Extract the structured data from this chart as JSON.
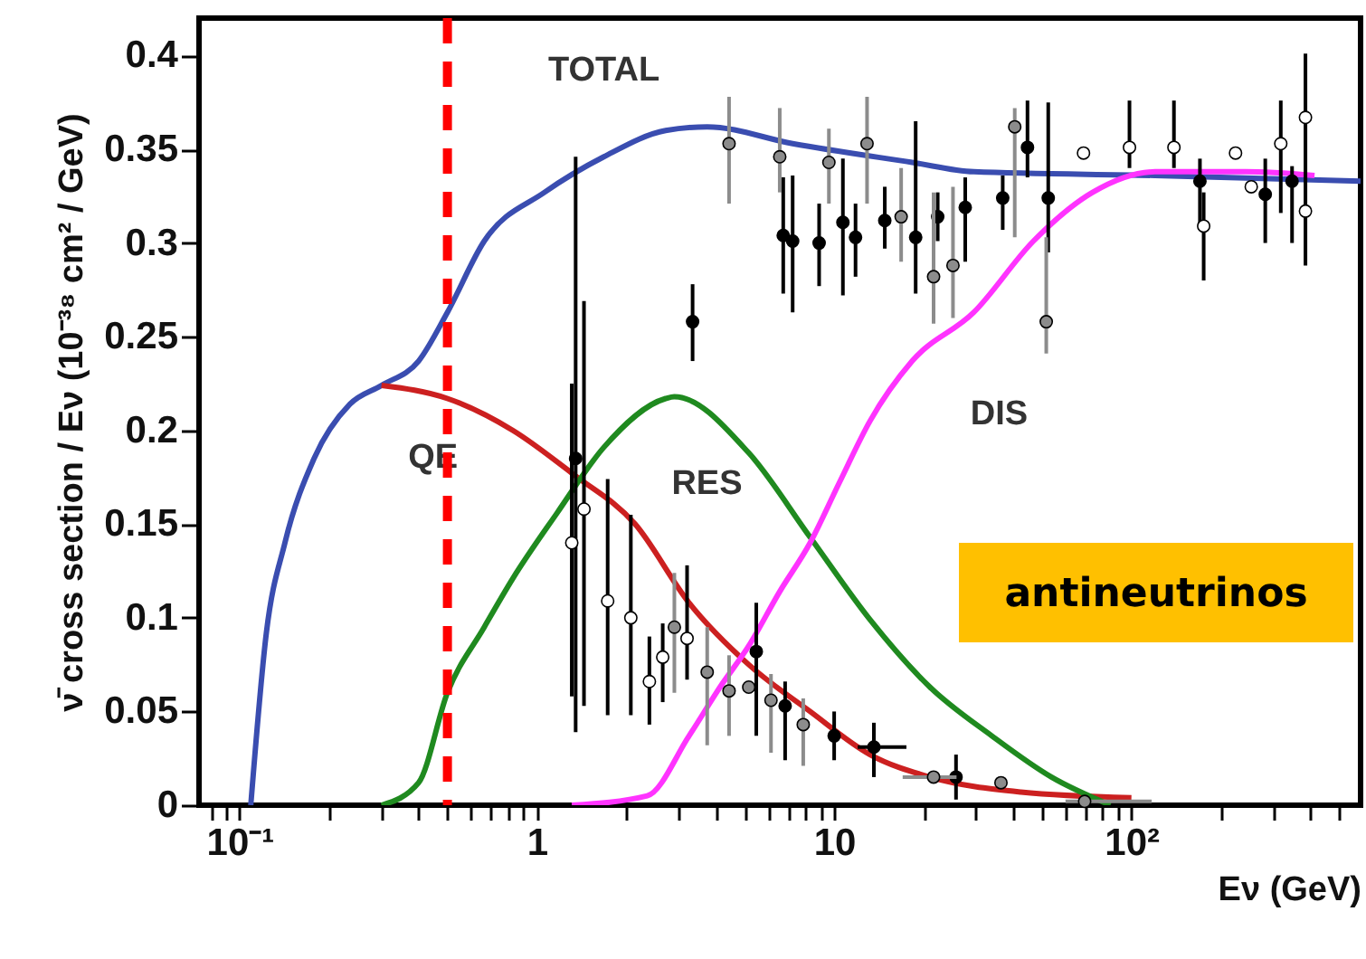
{
  "chart_data": {
    "type": "line",
    "xlabel": "Eν (GeV)",
    "ylabel": "ν̄ cross section / Eν (10⁻³⁸ cm² / GeV)",
    "log": "x",
    "grid": false,
    "line_style": "solid",
    "xlim": [
      0.073,
      590
    ],
    "ylim": [
      0,
      0.42
    ],
    "xticks": [
      {
        "value": 0.08,
        "label": null
      },
      {
        "value": 0.09,
        "label": null
      },
      {
        "value": 0.1,
        "label": "10⁻¹"
      },
      {
        "value": 0.2,
        "label": null
      },
      {
        "value": 0.3,
        "label": null
      },
      {
        "value": 0.4,
        "label": null
      },
      {
        "value": 0.5,
        "label": null
      },
      {
        "value": 0.6,
        "label": null
      },
      {
        "value": 0.7,
        "label": null
      },
      {
        "value": 0.8,
        "label": null
      },
      {
        "value": 0.9,
        "label": null
      },
      1,
      {
        "value": 2,
        "label": null
      },
      {
        "value": 3,
        "label": null
      },
      {
        "value": 4,
        "label": null
      },
      {
        "value": 5,
        "label": null
      },
      {
        "value": 6,
        "label": null
      },
      {
        "value": 7,
        "label": null
      },
      {
        "value": 8,
        "label": null
      },
      {
        "value": 9,
        "label": null
      },
      10,
      {
        "value": 20,
        "label": null
      },
      {
        "value": 30,
        "label": null
      },
      {
        "value": 40,
        "label": null
      },
      {
        "value": 50,
        "label": null
      },
      {
        "value": 60,
        "label": null
      },
      {
        "value": 70,
        "label": null
      },
      {
        "value": 80,
        "label": null
      },
      {
        "value": 90,
        "label": null
      },
      {
        "value": 100,
        "label": "10²"
      },
      {
        "value": 200,
        "label": null
      },
      {
        "value": 300,
        "label": null
      },
      {
        "value": 400,
        "label": null
      },
      {
        "value": 500,
        "label": null
      }
    ],
    "yticks": [
      0,
      0.05,
      0.1,
      0.15,
      0.2,
      0.25,
      0.3,
      0.35,
      0.4
    ],
    "ref_lines": [
      {
        "axis": "x",
        "value": 0.5,
        "color": "#ff0000",
        "line_style": "dashed"
      }
    ],
    "annotations": [
      "antineutrinos"
    ],
    "series": [
      {
        "name": "TOTAL",
        "marker": "none",
        "color": "#3a4db0",
        "x": [
          0.109,
          0.123,
          0.142,
          0.178,
          0.235,
          0.3,
          0.4,
          0.5,
          0.665,
          1.06,
          1.68,
          2.71,
          3.74,
          7.25,
          18.3,
          29.5,
          120,
          590
        ],
        "values": [
          0,
          0.092,
          0.14,
          0.185,
          0.214,
          0.224,
          0.237,
          0.263,
          0.301,
          0.327,
          0.346,
          0.36,
          0.362,
          0.353,
          0.343,
          0.338,
          0.336,
          0.333
        ]
      },
      {
        "name": "QE",
        "marker": "none",
        "color": "#cc2020",
        "x": [
          0.3,
          0.5,
          0.83,
          1.34,
          2.14,
          3.25,
          5.16,
          8.3,
          13.2,
          21,
          42.5,
          100
        ],
        "values": [
          0.224,
          0.217,
          0.2,
          0.176,
          0.15,
          0.108,
          0.075,
          0.05,
          0.027,
          0.015,
          0.007,
          0.004
        ]
      },
      {
        "name": "RES",
        "marker": "none",
        "color": "#1f8a1f",
        "x": [
          0.3,
          0.4,
          0.5,
          0.665,
          0.83,
          1.17,
          1.68,
          2.71,
          2.9,
          5.16,
          8.3,
          13.2,
          21,
          33.9,
          53.8,
          85
        ],
        "values": [
          0,
          0.012,
          0.06,
          0.095,
          0.121,
          0.156,
          0.191,
          0.217,
          0.218,
          0.188,
          0.143,
          0.099,
          0.063,
          0.037,
          0.015,
          0
        ]
      },
      {
        "name": "DIS",
        "marker": "none",
        "color": "#ff33ff",
        "x": [
          1.31,
          2.35,
          3.25,
          4.13,
          5.16,
          6.56,
          8.3,
          10.4,
          13.2,
          18.3,
          29.5,
          46.8,
          74,
          120,
          242,
          413
        ],
        "values": [
          0,
          0.005,
          0.037,
          0.063,
          0.085,
          0.114,
          0.14,
          0.172,
          0.205,
          0.237,
          0.263,
          0.301,
          0.327,
          0.338,
          0.338,
          0.336
        ]
      },
      {
        "type": "scatter",
        "marker": "circle",
        "color": "#000000",
        "x": [
          3.34,
          6.74,
          7.25,
          8.9,
          10.7,
          11.8,
          14.8,
          18.8,
          22.3,
          27.6,
          36.9,
          44.7,
          52.5,
          170,
          282,
          347,
          1.35,
          5.47,
          6.84,
          10,
          13.6,
          25.7
        ],
        "values": [
          0.258,
          0.304,
          0.301,
          0.3,
          0.311,
          0.303,
          0.312,
          0.303,
          0.314,
          0.319,
          0.324,
          0.351,
          0.324,
          0.333,
          0.326,
          0.333,
          0.185,
          0.082,
          0.053,
          0.037,
          0.031,
          0.015
        ],
        "errors": [
          [
            0.237,
            0.278
          ],
          [
            0.273,
            0.335
          ],
          [
            0.263,
            0.336
          ],
          [
            0.277,
            0.321
          ],
          [
            0.272,
            0.345
          ],
          [
            0.282,
            0.321
          ],
          [
            0.297,
            0.33
          ],
          [
            0.273,
            0.365
          ],
          [
            0.301,
            0.327
          ],
          [
            0.29,
            0.335
          ],
          [
            0.307,
            0.336
          ],
          [
            0.335,
            0.376
          ],
          [
            0.295,
            0.375
          ],
          [
            0.31,
            0.345
          ],
          [
            0.3,
            0.345
          ],
          [
            0.3,
            0.341
          ],
          [
            0.039,
            0.346
          ],
          [
            0.037,
            0.108
          ],
          [
            0.024,
            0.066
          ],
          [
            0.024,
            0.05
          ],
          [
            0.015,
            0.044
          ],
          [
            0.003,
            0.027
          ]
        ],
        "xerrors": [
          null,
          null,
          null,
          null,
          null,
          null,
          null,
          null,
          null,
          null,
          null,
          null,
          null,
          null,
          null,
          null,
          null,
          null,
          null,
          null,
          [
            12,
            17.5
          ],
          null
        ]
      },
      {
        "type": "scatter",
        "marker": "circle",
        "color": "#8c8c8c",
        "x": [
          4.43,
          6.56,
          9.6,
          12.9,
          16.8,
          21.6,
          25.1,
          51.7,
          40.5,
          2.9,
          3.74,
          4.43,
          5.16,
          6.13,
          7.87,
          21.6,
          36.4,
          69.6
        ],
        "values": [
          0.353,
          0.346,
          0.343,
          0.353,
          0.314,
          0.282,
          0.288,
          0.258,
          0.362,
          0.095,
          0.071,
          0.061,
          0.063,
          0.056,
          0.043,
          0.015,
          0.012,
          0.002
        ],
        "errors": [
          [
            0.321,
            0.378
          ],
          [
            0.327,
            0.372
          ],
          [
            0.321,
            0.361
          ],
          [
            0.321,
            0.378
          ],
          [
            0.29,
            0.34
          ],
          [
            0.257,
            0.327
          ],
          [
            0.26,
            0.33
          ],
          [
            0.241,
            0.303
          ],
          [
            0.303,
            0.372
          ],
          [
            0.06,
            0.124
          ],
          [
            0.032,
            0.095
          ],
          [
            0.037,
            0.08
          ],
          null,
          [
            0.028,
            0.07
          ],
          [
            0.021,
            0.057
          ],
          null,
          null,
          null
        ],
        "xerrors": [
          null,
          null,
          null,
          null,
          null,
          null,
          null,
          null,
          null,
          null,
          null,
          null,
          null,
          null,
          null,
          [
            17,
            25.8
          ],
          null,
          [
            60,
            117
          ]
        ]
      },
      {
        "type": "scatter",
        "marker": "circle",
        "color": "#ffffff",
        "x": [
          98.5,
          139,
          175,
          318,
          385,
          385,
          69,
          224,
          253,
          1.31,
          1.44,
          1.73,
          2.07,
          2.39,
          2.65,
          3.2
        ],
        "values": [
          0.351,
          0.351,
          0.309,
          0.353,
          0.367,
          0.317,
          0.348,
          0.348,
          0.33,
          0.14,
          0.158,
          0.109,
          0.1,
          0.066,
          0.079,
          0.089
        ],
        "errors": [
          [
            0.34,
            0.376
          ],
          [
            0.34,
            0.376
          ],
          [
            0.28,
            0.327
          ],
          [
            0.316,
            0.376
          ],
          [
            0.288,
            0.401
          ],
          null,
          null,
          null,
          null,
          [
            0.058,
            0.225
          ],
          [
            0.053,
            0.269
          ],
          [
            0.048,
            0.174
          ],
          [
            0.048,
            0.155
          ],
          [
            0.043,
            0.09
          ],
          [
            0.055,
            0.097
          ],
          [
            0.067,
            0.128
          ]
        ]
      }
    ]
  }
}
